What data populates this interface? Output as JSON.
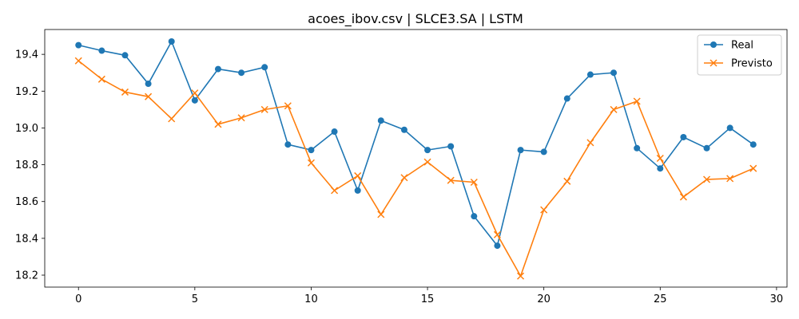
{
  "chart_data": {
    "type": "line",
    "title": "acoes_ibov.csv | SLCE3.SA | LSTM",
    "xlabel": "",
    "ylabel": "",
    "xlim": [
      -1.45,
      30.45
    ],
    "ylim": [
      18.135,
      19.535
    ],
    "xticks": [
      0,
      5,
      10,
      15,
      20,
      25,
      30
    ],
    "yticks": [
      18.2,
      18.4,
      18.6,
      18.8,
      19.0,
      19.2,
      19.4
    ],
    "ytick_labels": [
      "18.2",
      "18.4",
      "18.6",
      "18.8",
      "19.0",
      "19.2",
      "19.4"
    ],
    "grid": false,
    "legend_position": "top-right",
    "x": [
      0,
      1,
      2,
      3,
      4,
      5,
      6,
      7,
      8,
      9,
      10,
      11,
      12,
      13,
      14,
      15,
      16,
      17,
      18,
      19,
      20,
      21,
      22,
      23,
      24,
      25,
      26,
      27,
      28,
      29
    ],
    "series": [
      {
        "name": "Real",
        "color": "#1f77b4",
        "marker": "circle",
        "values": [
          19.45,
          19.42,
          19.395,
          19.24,
          19.47,
          19.15,
          19.32,
          19.3,
          19.33,
          18.91,
          18.88,
          18.98,
          18.66,
          19.04,
          18.99,
          18.88,
          18.9,
          18.52,
          18.36,
          18.88,
          18.87,
          19.16,
          19.29,
          19.3,
          18.89,
          18.78,
          18.95,
          18.89,
          19.0,
          18.91
        ]
      },
      {
        "name": "Previsto",
        "color": "#ff7f0e",
        "marker": "x",
        "values": [
          19.365,
          19.265,
          19.195,
          19.17,
          19.05,
          19.19,
          19.02,
          19.055,
          19.1,
          19.12,
          18.81,
          18.66,
          18.74,
          18.53,
          18.73,
          18.815,
          18.715,
          18.705,
          18.42,
          18.195,
          18.555,
          18.71,
          18.92,
          19.1,
          19.145,
          18.835,
          18.625,
          18.72,
          18.725,
          18.78
        ]
      }
    ]
  }
}
